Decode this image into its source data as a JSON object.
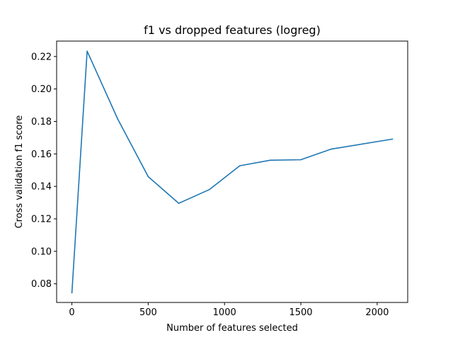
{
  "chart_data": {
    "type": "line",
    "title": "f1 vs dropped features (logreg)",
    "xlabel": "Number of features selected",
    "ylabel": "Cross validation f1 score",
    "xlim": [
      -100,
      2200
    ],
    "ylim": [
      0.0685,
      0.2295
    ],
    "xticks": [
      0,
      500,
      1000,
      1500,
      2000
    ],
    "xtick_labels": [
      "0",
      "500",
      "1000",
      "1500",
      "2000"
    ],
    "yticks": [
      0.08,
      0.1,
      0.12,
      0.14,
      0.16,
      0.18,
      0.2,
      0.22
    ],
    "ytick_labels": [
      "0.08",
      "0.10",
      "0.12",
      "0.14",
      "0.16",
      "0.18",
      "0.20",
      "0.22"
    ],
    "grid": false,
    "legend": "none",
    "series": [
      {
        "color": "#1f77b4",
        "x": [
          0,
          100,
          300,
          500,
          700,
          900,
          1100,
          1300,
          1500,
          1700,
          2100
        ],
        "y": [
          0.0745,
          0.2233,
          0.1815,
          0.146,
          0.1296,
          0.138,
          0.1527,
          0.1561,
          0.1564,
          0.163,
          0.1691
        ]
      }
    ]
  }
}
